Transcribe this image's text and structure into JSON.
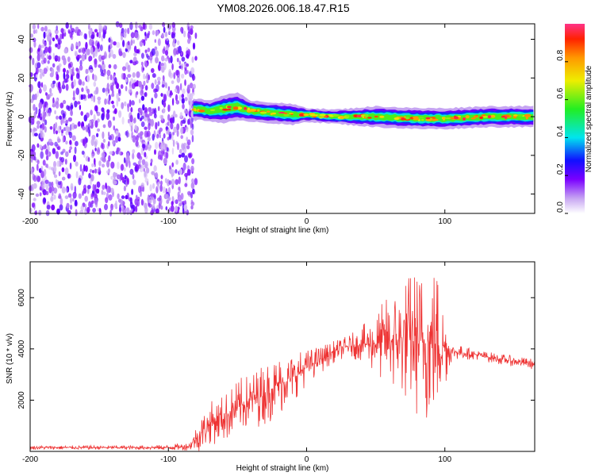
{
  "chart_data": [
    {
      "type": "heatmap",
      "title": "YM08.2026.006.18.47.R15",
      "xlabel": "Height of straight line (km)",
      "ylabel": "Frequency (Hz)",
      "xlim": [
        -200,
        165
      ],
      "ylim": [
        -50,
        48
      ],
      "x_ticks": [
        -200,
        -100,
        0,
        100
      ],
      "y_ticks": [
        -40,
        -20,
        0,
        20,
        40
      ],
      "noise_region": {
        "x_start": -200,
        "x_end": -80
      },
      "signal_band": [
        {
          "x": -82,
          "center": 4,
          "halfwidth": 3
        },
        {
          "x": -70,
          "center": 3,
          "halfwidth": 3
        },
        {
          "x": -60,
          "center": 4,
          "halfwidth": 4
        },
        {
          "x": -50,
          "center": 5,
          "halfwidth": 4
        },
        {
          "x": -40,
          "center": 3,
          "halfwidth": 3
        },
        {
          "x": -25,
          "center": 2,
          "halfwidth": 3
        },
        {
          "x": -10,
          "center": 1,
          "halfwidth": 3
        },
        {
          "x": 0,
          "center": 1,
          "halfwidth": 2
        },
        {
          "x": 20,
          "center": 0,
          "halfwidth": 2
        },
        {
          "x": 50,
          "center": 0,
          "halfwidth": 3
        },
        {
          "x": 80,
          "center": -1,
          "halfwidth": 3
        },
        {
          "x": 100,
          "center": -1,
          "halfwidth": 3
        },
        {
          "x": 130,
          "center": 0,
          "halfwidth": 3
        },
        {
          "x": 165,
          "center": 0,
          "halfwidth": 3
        }
      ],
      "colorbar": {
        "label": "Normalized spectral amplitude",
        "range": [
          0.0,
          1.0
        ],
        "ticks": [
          0.0,
          0.2,
          0.4,
          0.6,
          0.8
        ]
      }
    },
    {
      "type": "line",
      "xlabel": "Height of straight line (km)",
      "ylabel": "SNR (10 * v/v)",
      "xlim": [
        -200,
        165
      ],
      "ylim": [
        0,
        7400
      ],
      "x_ticks": [
        -200,
        -100,
        0,
        100
      ],
      "y_ticks": [
        2000,
        4000,
        6000
      ],
      "color": "#ee3333",
      "series": [
        {
          "x": [
            -200,
            -180,
            -160,
            -140,
            -120,
            -100,
            -85,
            -80,
            -75,
            -70,
            -60,
            -50,
            -40,
            -30,
            -20,
            -10,
            0,
            10,
            20,
            30,
            40,
            50,
            60,
            70,
            80,
            90,
            95,
            100,
            105,
            120,
            140,
            165
          ],
          "values": [
            150,
            150,
            150,
            150,
            150,
            150,
            200,
            500,
            800,
            1100,
            1300,
            1700,
            2000,
            2300,
            2600,
            2900,
            3300,
            3600,
            3900,
            4100,
            4200,
            4200,
            4300,
            4400,
            4300,
            4200,
            4200,
            4100,
            3900,
            3800,
            3600,
            3400
          ],
          "spread": [
            60,
            60,
            60,
            60,
            60,
            80,
            120,
            400,
            600,
            600,
            700,
            800,
            800,
            900,
            900,
            700,
            500,
            400,
            300,
            300,
            500,
            900,
            1400,
            1800,
            2200,
            2400,
            2400,
            1200,
            250,
            150,
            150,
            150
          ]
        }
      ]
    }
  ]
}
